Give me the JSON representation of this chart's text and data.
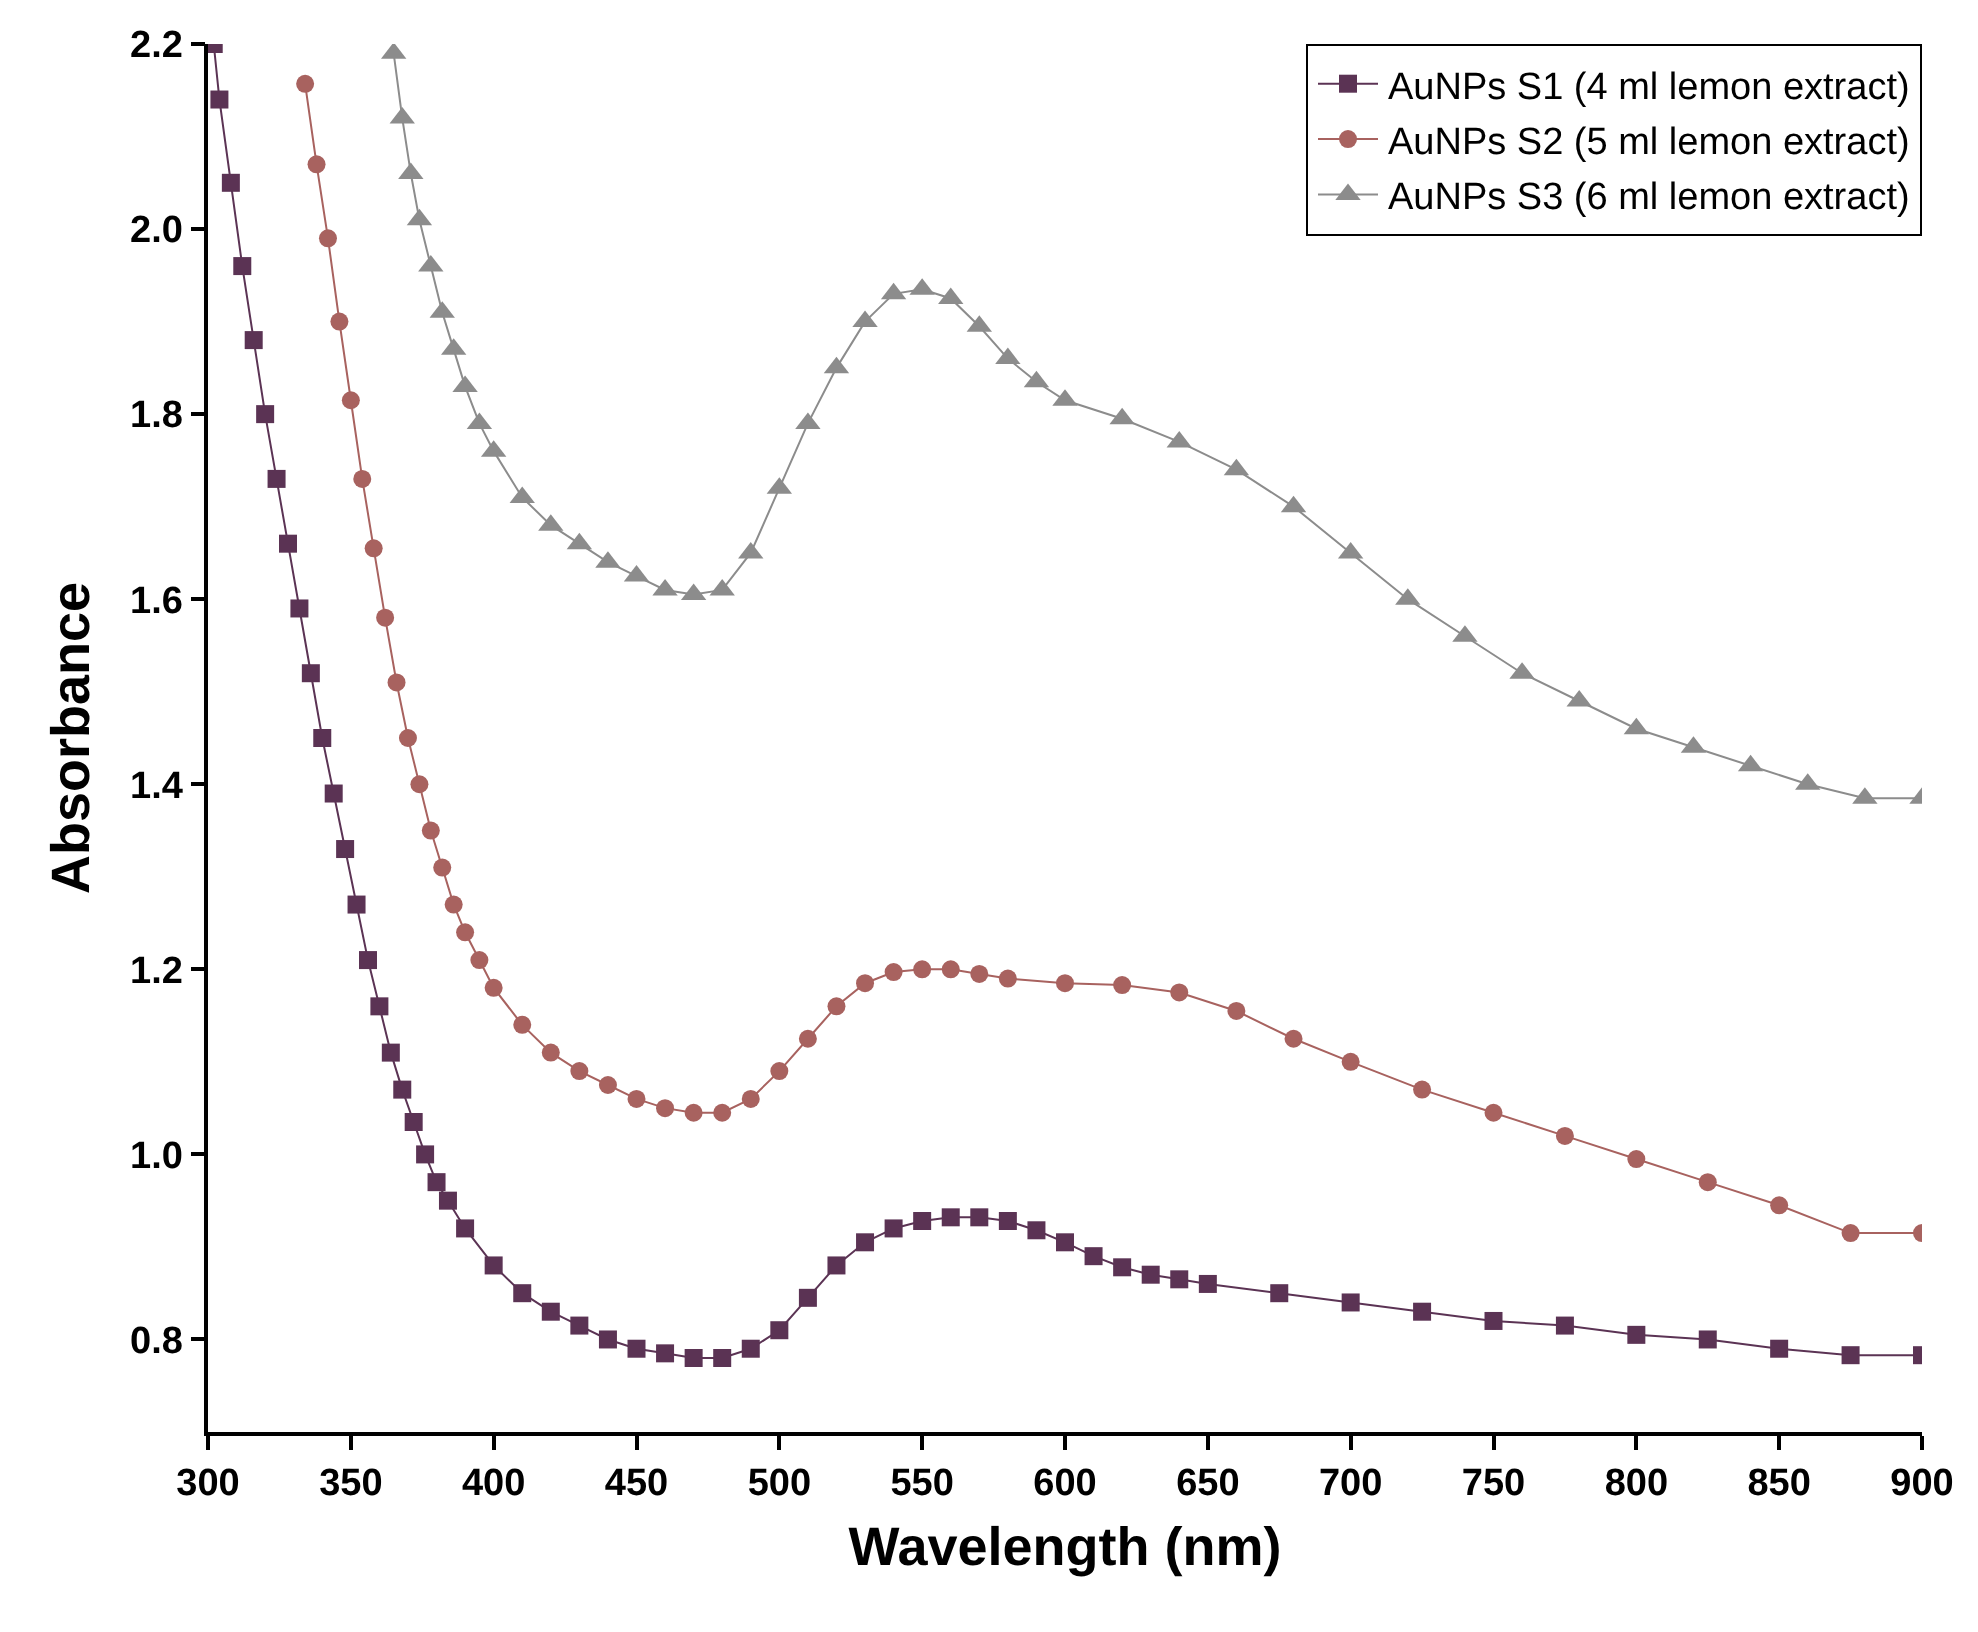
{
  "chart_data": {
    "type": "line",
    "xlabel": "Wavelength (nm)",
    "ylabel": "Absorbance",
    "xlim": [
      300,
      900
    ],
    "ylim": [
      0.7,
      2.2
    ],
    "xticks": [
      300,
      350,
      400,
      450,
      500,
      550,
      600,
      650,
      700,
      750,
      800,
      850,
      900
    ],
    "yticks": [
      0.8,
      {
        "value": 1,
        "label": "1.0"
      },
      1.2,
      1.4,
      1.6,
      1.8,
      {
        "value": 2,
        "label": "2.0"
      },
      2.2
    ],
    "grid": false,
    "legend": "top right",
    "line_style": "solid",
    "series": [
      {
        "name": "AuNPs S1 (4 ml lemon extract)",
        "color": "#5b3354",
        "marker": "square",
        "x": [
          302,
          304,
          308,
          312,
          316,
          320,
          324,
          328,
          332,
          336,
          340,
          344,
          348,
          352,
          356,
          360,
          364,
          368,
          372,
          376,
          380,
          384,
          390,
          400,
          410,
          420,
          430,
          440,
          450,
          460,
          470,
          480,
          490,
          500,
          510,
          520,
          530,
          540,
          550,
          560,
          570,
          580,
          590,
          600,
          610,
          620,
          630,
          640,
          650,
          675,
          700,
          725,
          750,
          775,
          800,
          825,
          850,
          875,
          900
        ],
        "values": [
          2.2,
          2.14,
          2.05,
          1.96,
          1.88,
          1.8,
          1.73,
          1.66,
          1.59,
          1.52,
          1.45,
          1.39,
          1.33,
          1.27,
          1.21,
          1.16,
          1.11,
          1.07,
          1.035,
          1.0,
          0.97,
          0.95,
          0.92,
          0.88,
          0.85,
          0.83,
          0.815,
          0.8,
          0.79,
          0.785,
          0.78,
          0.78,
          0.79,
          0.81,
          0.845,
          0.88,
          0.905,
          0.92,
          0.928,
          0.932,
          0.932,
          0.928,
          0.918,
          0.905,
          0.89,
          0.878,
          0.87,
          0.865,
          0.86,
          0.85,
          0.84,
          0.83,
          0.82,
          0.815,
          0.805,
          0.8,
          0.79,
          0.783,
          0.783
        ]
      },
      {
        "name": "AuNPs S2 (5 ml lemon extract)",
        "color": "#a8625f",
        "marker": "circle",
        "x": [
          334,
          338,
          342,
          346,
          350,
          354,
          358,
          362,
          366,
          370,
          374,
          378,
          382,
          386,
          390,
          395,
          400,
          410,
          420,
          430,
          440,
          450,
          460,
          470,
          480,
          490,
          500,
          510,
          520,
          530,
          540,
          550,
          560,
          570,
          580,
          600,
          620,
          640,
          660,
          680,
          700,
          725,
          750,
          775,
          800,
          825,
          850,
          875,
          900
        ],
        "values": [
          2.157,
          2.07,
          1.99,
          1.9,
          1.815,
          1.73,
          1.655,
          1.58,
          1.51,
          1.45,
          1.4,
          1.35,
          1.31,
          1.27,
          1.24,
          1.21,
          1.18,
          1.14,
          1.11,
          1.09,
          1.075,
          1.06,
          1.05,
          1.045,
          1.045,
          1.06,
          1.09,
          1.125,
          1.16,
          1.185,
          1.197,
          1.2,
          1.2,
          1.195,
          1.19,
          1.185,
          1.183,
          1.175,
          1.155,
          1.125,
          1.1,
          1.07,
          1.045,
          1.02,
          0.995,
          0.97,
          0.945,
          0.915,
          0.915
        ]
      },
      {
        "name": "AuNPs S3 (6 ml lemon extract)",
        "color": "#8c8c8c",
        "marker": "triangle",
        "x": [
          365,
          368,
          371,
          374,
          378,
          382,
          386,
          390,
          395,
          400,
          410,
          420,
          430,
          440,
          450,
          460,
          470,
          480,
          490,
          500,
          510,
          520,
          530,
          540,
          550,
          560,
          570,
          580,
          590,
          600,
          620,
          640,
          660,
          680,
          700,
          720,
          740,
          760,
          780,
          800,
          820,
          840,
          860,
          880,
          900
        ],
        "values": [
          2.19,
          2.12,
          2.06,
          2.01,
          1.96,
          1.91,
          1.87,
          1.83,
          1.79,
          1.76,
          1.71,
          1.68,
          1.66,
          1.64,
          1.625,
          1.61,
          1.605,
          1.61,
          1.65,
          1.72,
          1.79,
          1.85,
          1.9,
          1.93,
          1.935,
          1.925,
          1.895,
          1.86,
          1.835,
          1.815,
          1.795,
          1.77,
          1.74,
          1.7,
          1.65,
          1.6,
          1.56,
          1.52,
          1.49,
          1.46,
          1.44,
          1.42,
          1.4,
          1.385,
          1.385
        ]
      }
    ]
  }
}
